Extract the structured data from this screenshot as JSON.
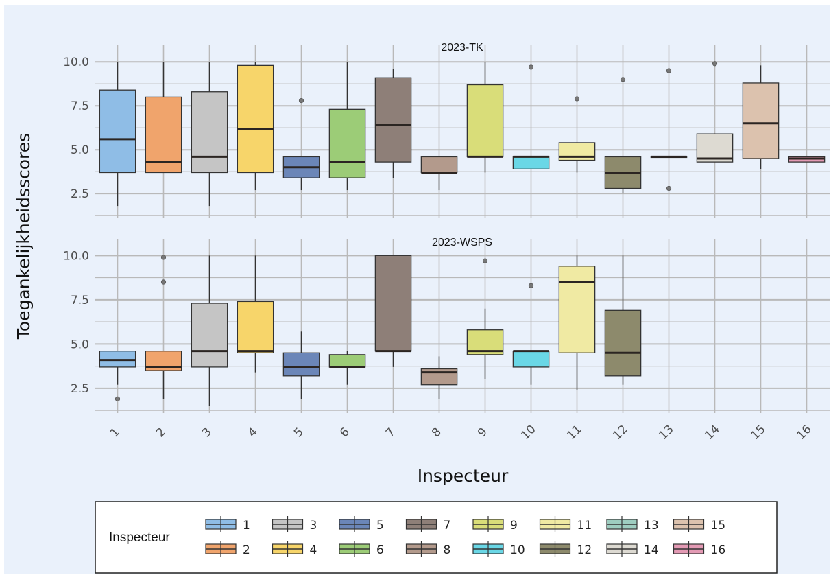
{
  "chart_data": {
    "type": "box",
    "xlabel": "Inspecteur",
    "ylabel": "Toegankelijkheidsscores",
    "categories": [
      "1",
      "2",
      "3",
      "4",
      "5",
      "6",
      "7",
      "8",
      "9",
      "10",
      "11",
      "12",
      "13",
      "14",
      "15",
      "16"
    ],
    "ylim": [
      1.1,
      10.4
    ],
    "yticks": [
      2.5,
      5.0,
      7.5,
      10.0
    ],
    "ytick_labels": [
      "2.5",
      "5.0",
      "7.5",
      "10.0"
    ],
    "grid": true,
    "legend": {
      "title": "Inspecteur",
      "placement": "bottom",
      "entries": [
        "1",
        "2",
        "3",
        "4",
        "5",
        "6",
        "7",
        "8",
        "9",
        "10",
        "11",
        "12",
        "13",
        "14",
        "15",
        "16"
      ]
    },
    "colors": [
      "#8fbde6",
      "#f0a46c",
      "#c5c5c5",
      "#f7d56a",
      "#6b86b8",
      "#9ccc77",
      "#8e7f78",
      "#b39a8c",
      "#d9dd79",
      "#6ad7e6",
      "#f0eaa3",
      "#8d8a6c",
      "#9ecdc0",
      "#dddad2",
      "#dcc2ae",
      "#e39ab4"
    ],
    "facets": [
      {
        "title": "2023-TK",
        "boxes": [
          {
            "category": "1",
            "q1": 3.7,
            "median": 5.6,
            "q3": 8.4,
            "whisker_low": 1.8,
            "whisker_high": 10.0,
            "outliers": []
          },
          {
            "category": "2",
            "q1": 3.7,
            "median": 4.3,
            "q3": 8.0,
            "whisker_low": 3.7,
            "whisker_high": 10.0,
            "outliers": []
          },
          {
            "category": "3",
            "q1": 3.7,
            "median": 4.6,
            "q3": 8.3,
            "whisker_low": 1.8,
            "whisker_high": 10.0,
            "outliers": []
          },
          {
            "category": "4",
            "q1": 3.7,
            "median": 6.2,
            "q3": 9.8,
            "whisker_low": 2.7,
            "whisker_high": 10.0,
            "outliers": []
          },
          {
            "category": "5",
            "q1": 3.4,
            "median": 4.0,
            "q3": 4.6,
            "whisker_low": 2.7,
            "whisker_high": 4.6,
            "outliers": [
              7.8
            ]
          },
          {
            "category": "6",
            "q1": 3.4,
            "median": 4.3,
            "q3": 7.3,
            "whisker_low": 2.7,
            "whisker_high": 10.0,
            "outliers": []
          },
          {
            "category": "7",
            "q1": 4.3,
            "median": 6.4,
            "q3": 9.1,
            "whisker_low": 3.4,
            "whisker_high": 9.6,
            "outliers": []
          },
          {
            "category": "8",
            "q1": 3.7,
            "median": 3.7,
            "q3": 4.6,
            "whisker_low": 2.7,
            "whisker_high": 4.6,
            "outliers": []
          },
          {
            "category": "9",
            "q1": 4.6,
            "median": 4.6,
            "q3": 8.7,
            "whisker_low": 3.7,
            "whisker_high": 10.0,
            "outliers": []
          },
          {
            "category": "10",
            "q1": 3.9,
            "median": 4.6,
            "q3": 4.6,
            "whisker_low": 3.9,
            "whisker_high": 4.6,
            "outliers": [
              9.7
            ]
          },
          {
            "category": "11",
            "q1": 4.4,
            "median": 4.6,
            "q3": 5.4,
            "whisker_low": 3.7,
            "whisker_high": 5.4,
            "outliers": [
              7.9
            ]
          },
          {
            "category": "12",
            "q1": 2.8,
            "median": 3.7,
            "q3": 4.6,
            "whisker_low": 2.5,
            "whisker_high": 4.6,
            "outliers": [
              9.0
            ]
          },
          {
            "category": "13",
            "q1": 4.6,
            "median": 4.6,
            "q3": 4.6,
            "whisker_low": 4.6,
            "whisker_high": 4.6,
            "outliers": [
              9.5,
              2.8
            ]
          },
          {
            "category": "14",
            "q1": 4.3,
            "median": 4.5,
            "q3": 5.9,
            "whisker_low": 4.3,
            "whisker_high": 5.9,
            "outliers": [
              9.9
            ]
          },
          {
            "category": "15",
            "q1": 4.5,
            "median": 6.5,
            "q3": 8.8,
            "whisker_low": 3.9,
            "whisker_high": 9.8,
            "outliers": []
          },
          {
            "category": "16",
            "q1": 4.3,
            "median": 4.5,
            "q3": 4.6,
            "whisker_low": 4.3,
            "whisker_high": 4.6,
            "outliers": []
          }
        ]
      },
      {
        "title": "2023-WSPS",
        "boxes": [
          {
            "category": "1",
            "q1": 3.7,
            "median": 4.1,
            "q3": 4.6,
            "whisker_low": 2.7,
            "whisker_high": 4.6,
            "outliers": [
              1.9
            ]
          },
          {
            "category": "2",
            "q1": 3.5,
            "median": 3.7,
            "q3": 4.6,
            "whisker_low": 1.9,
            "whisker_high": 4.6,
            "outliers": [
              8.5,
              9.9
            ]
          },
          {
            "category": "3",
            "q1": 3.7,
            "median": 4.6,
            "q3": 7.3,
            "whisker_low": 1.5,
            "whisker_high": 10.0,
            "outliers": []
          },
          {
            "category": "4",
            "q1": 4.5,
            "median": 4.6,
            "q3": 7.4,
            "whisker_low": 3.4,
            "whisker_high": 10.0,
            "outliers": []
          },
          {
            "category": "5",
            "q1": 3.2,
            "median": 3.7,
            "q3": 4.5,
            "whisker_low": 1.9,
            "whisker_high": 5.7,
            "outliers": []
          },
          {
            "category": "6",
            "q1": 3.7,
            "median": 3.7,
            "q3": 4.4,
            "whisker_low": 2.7,
            "whisker_high": 4.6,
            "outliers": []
          },
          {
            "category": "7",
            "q1": 4.6,
            "median": 4.6,
            "q3": 10.0,
            "whisker_low": 3.7,
            "whisker_high": 10.0,
            "outliers": []
          },
          {
            "category": "8",
            "q1": 2.7,
            "median": 3.4,
            "q3": 3.6,
            "whisker_low": 1.9,
            "whisker_high": 4.3,
            "outliers": []
          },
          {
            "category": "9",
            "q1": 4.4,
            "median": 4.6,
            "q3": 5.8,
            "whisker_low": 3.0,
            "whisker_high": 7.0,
            "outliers": [
              9.7
            ]
          },
          {
            "category": "10",
            "q1": 3.7,
            "median": 4.6,
            "q3": 4.6,
            "whisker_low": 2.7,
            "whisker_high": 4.6,
            "outliers": [
              8.3
            ]
          },
          {
            "category": "11",
            "q1": 4.5,
            "median": 8.5,
            "q3": 9.4,
            "whisker_low": 2.4,
            "whisker_high": 10.0,
            "outliers": []
          },
          {
            "category": "12",
            "q1": 3.2,
            "median": 4.5,
            "q3": 6.9,
            "whisker_low": 2.7,
            "whisker_high": 10.0,
            "outliers": []
          }
        ]
      }
    ]
  }
}
